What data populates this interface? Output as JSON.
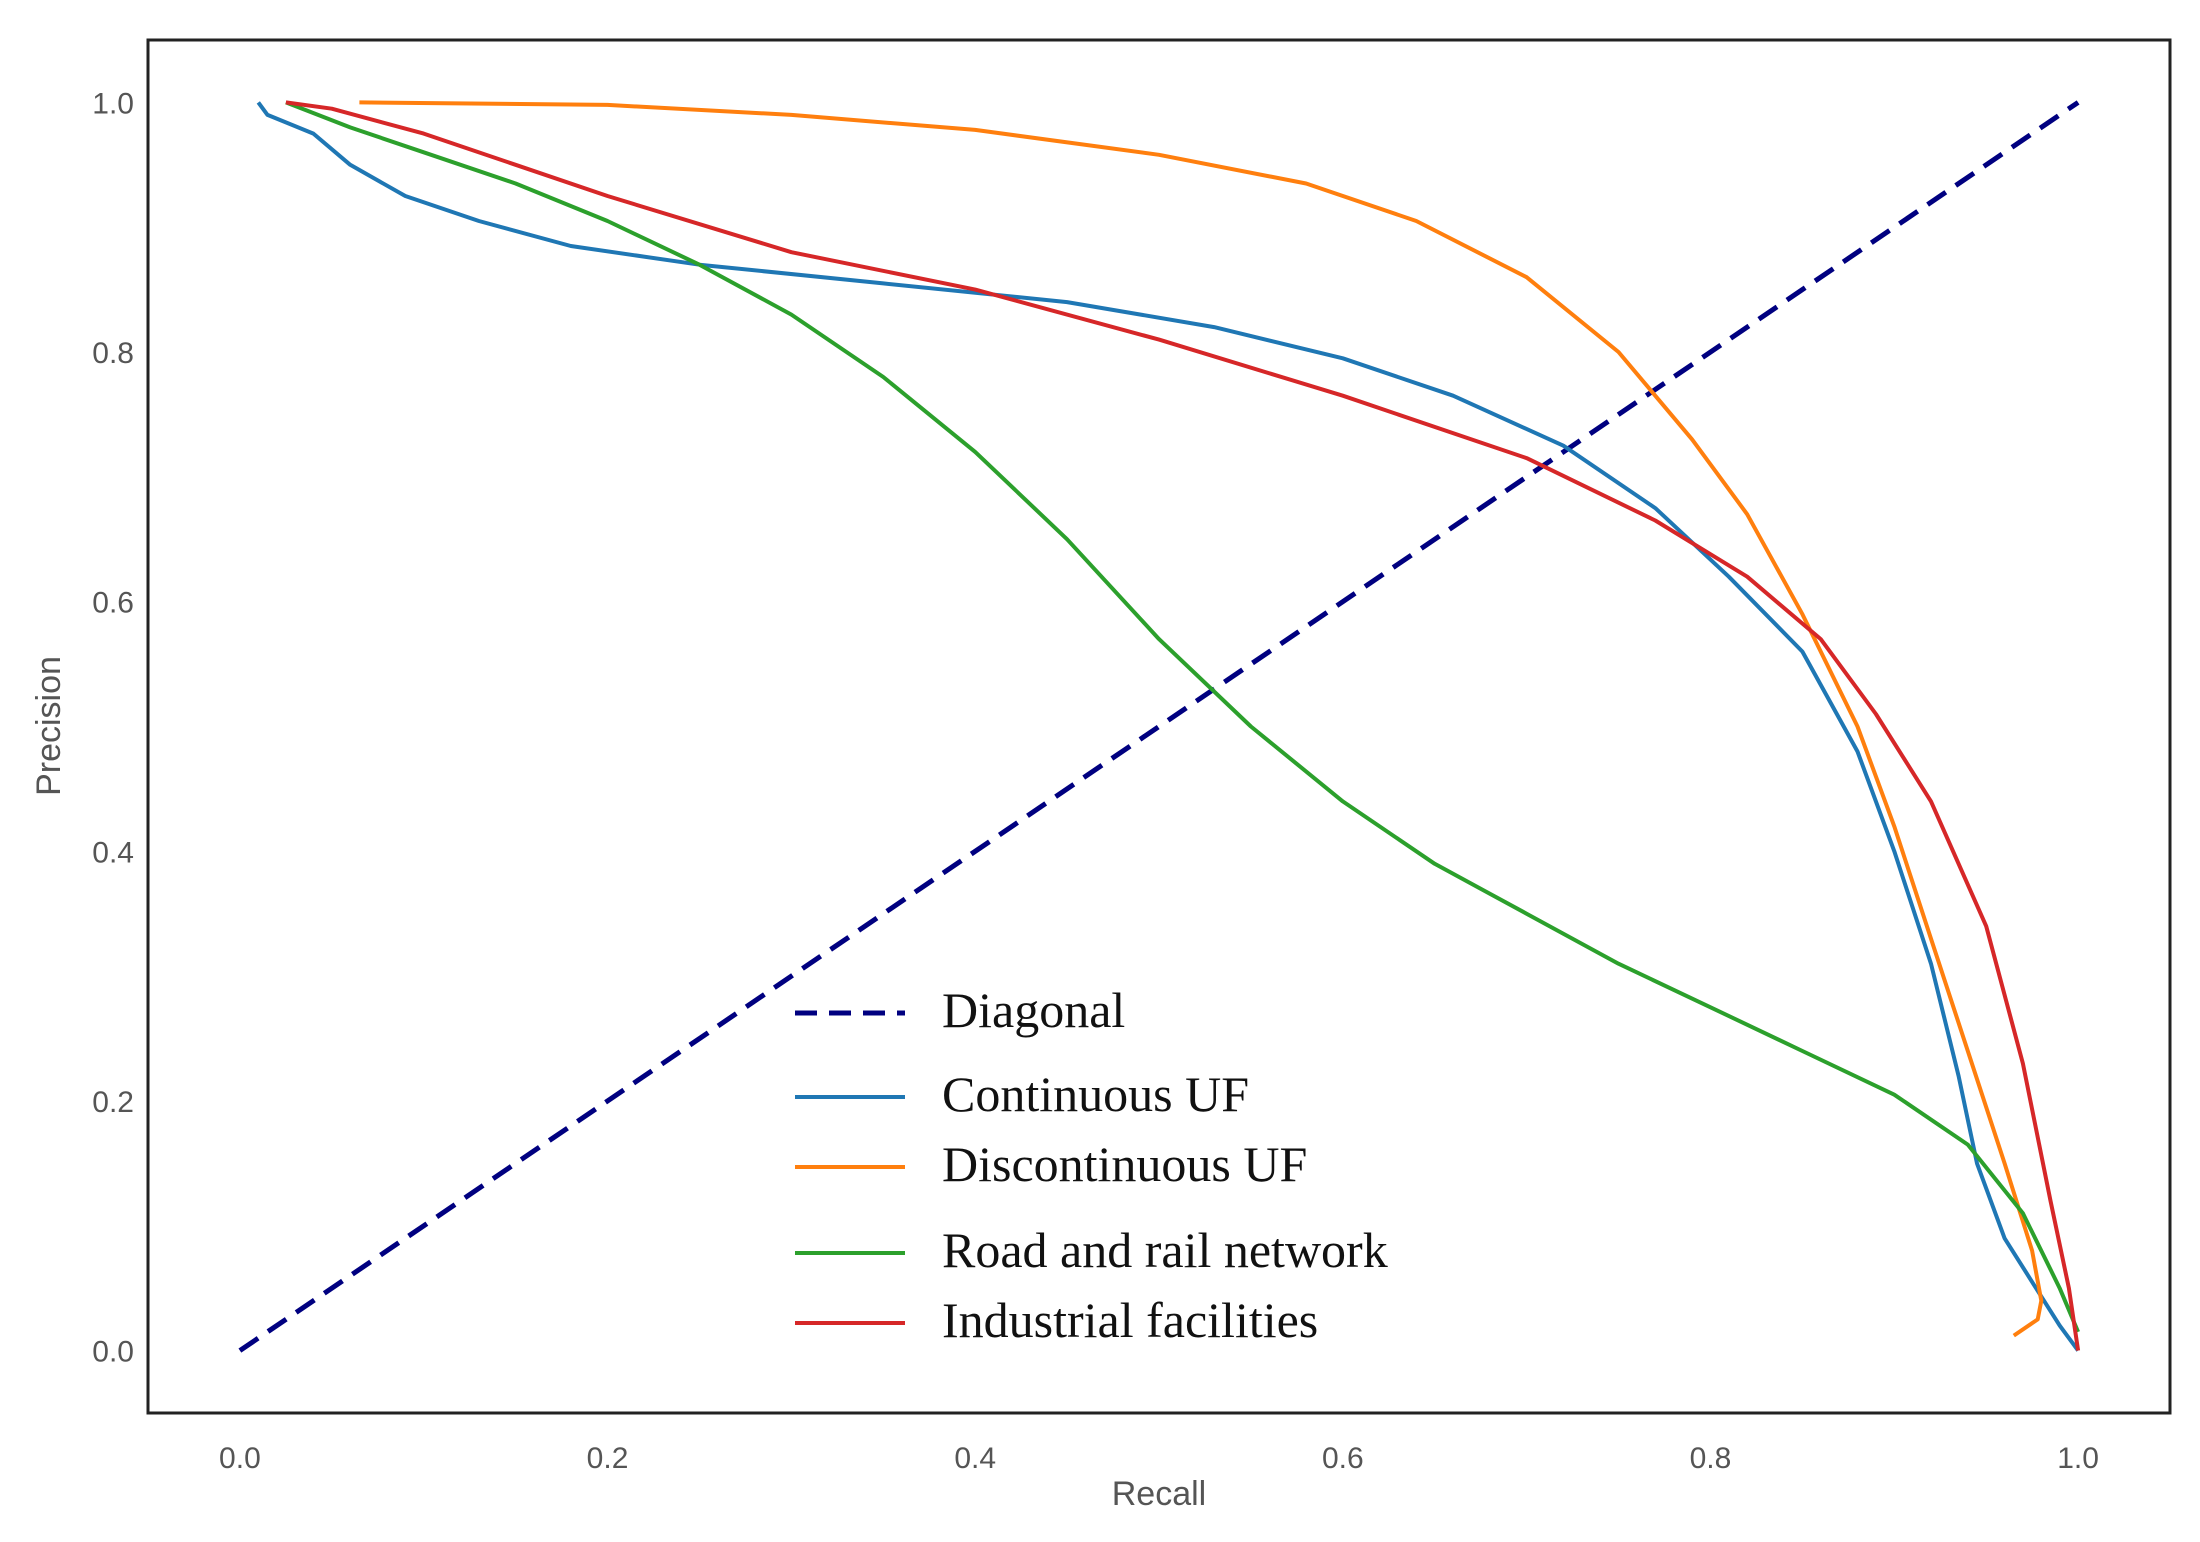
{
  "chart_data": {
    "type": "line",
    "title": "",
    "xlabel": "Recall",
    "ylabel": "Precision",
    "xlim": [
      -0.05,
      1.05
    ],
    "ylim": [
      -0.05,
      1.05
    ],
    "xticks": [
      "0.0",
      "0.2",
      "0.4",
      "0.6",
      "0.8",
      "1.0"
    ],
    "yticks": [
      "0.0",
      "0.2",
      "0.4",
      "0.6",
      "0.8",
      "1.0"
    ],
    "grid": false,
    "legend_position": "lower-center",
    "series": [
      {
        "name": "Diagonal",
        "color": "#000080",
        "dash": true,
        "points": [
          [
            0,
            0
          ],
          [
            1,
            1
          ]
        ]
      },
      {
        "name": "Continuous UF",
        "color": "#1f77b4",
        "dash": false,
        "points": [
          [
            0.01,
            1.0
          ],
          [
            0.015,
            0.99
          ],
          [
            0.04,
            0.975
          ],
          [
            0.06,
            0.95
          ],
          [
            0.09,
            0.925
          ],
          [
            0.13,
            0.905
          ],
          [
            0.18,
            0.885
          ],
          [
            0.25,
            0.87
          ],
          [
            0.35,
            0.855
          ],
          [
            0.45,
            0.84
          ],
          [
            0.53,
            0.82
          ],
          [
            0.6,
            0.795
          ],
          [
            0.66,
            0.765
          ],
          [
            0.72,
            0.725
          ],
          [
            0.77,
            0.675
          ],
          [
            0.81,
            0.62
          ],
          [
            0.85,
            0.56
          ],
          [
            0.88,
            0.48
          ],
          [
            0.9,
            0.4
          ],
          [
            0.92,
            0.31
          ],
          [
            0.935,
            0.22
          ],
          [
            0.945,
            0.15
          ],
          [
            0.96,
            0.09
          ],
          [
            0.975,
            0.055
          ],
          [
            0.99,
            0.02
          ],
          [
            1.0,
            0.0
          ]
        ]
      },
      {
        "name": "Discontinuous UF",
        "color": "#ff7f0e",
        "dash": false,
        "points": [
          [
            0.065,
            1.0
          ],
          [
            0.2,
            0.998
          ],
          [
            0.3,
            0.99
          ],
          [
            0.4,
            0.978
          ],
          [
            0.5,
            0.958
          ],
          [
            0.58,
            0.935
          ],
          [
            0.64,
            0.905
          ],
          [
            0.7,
            0.86
          ],
          [
            0.75,
            0.8
          ],
          [
            0.79,
            0.73
          ],
          [
            0.82,
            0.67
          ],
          [
            0.85,
            0.59
          ],
          [
            0.88,
            0.5
          ],
          [
            0.9,
            0.42
          ],
          [
            0.92,
            0.33
          ],
          [
            0.94,
            0.24
          ],
          [
            0.96,
            0.15
          ],
          [
            0.975,
            0.08
          ],
          [
            0.98,
            0.04
          ],
          [
            0.978,
            0.025
          ],
          [
            0.965,
            0.012
          ]
        ]
      },
      {
        "name": "Road and rail network",
        "color": "#2ca02c",
        "dash": false,
        "points": [
          [
            0.025,
            1.0
          ],
          [
            0.06,
            0.98
          ],
          [
            0.1,
            0.96
          ],
          [
            0.15,
            0.935
          ],
          [
            0.2,
            0.905
          ],
          [
            0.25,
            0.87
          ],
          [
            0.3,
            0.83
          ],
          [
            0.35,
            0.78
          ],
          [
            0.4,
            0.72
          ],
          [
            0.45,
            0.65
          ],
          [
            0.5,
            0.57
          ],
          [
            0.55,
            0.5
          ],
          [
            0.6,
            0.44
          ],
          [
            0.65,
            0.39
          ],
          [
            0.7,
            0.35
          ],
          [
            0.75,
            0.31
          ],
          [
            0.8,
            0.275
          ],
          [
            0.85,
            0.24
          ],
          [
            0.9,
            0.205
          ],
          [
            0.94,
            0.165
          ],
          [
            0.97,
            0.11
          ],
          [
            0.99,
            0.05
          ],
          [
            1.0,
            0.015
          ]
        ]
      },
      {
        "name": "Industrial facilities",
        "color": "#d62728",
        "dash": false,
        "points": [
          [
            0.025,
            1.0
          ],
          [
            0.05,
            0.995
          ],
          [
            0.1,
            0.975
          ],
          [
            0.15,
            0.95
          ],
          [
            0.2,
            0.925
          ],
          [
            0.3,
            0.88
          ],
          [
            0.4,
            0.85
          ],
          [
            0.5,
            0.81
          ],
          [
            0.6,
            0.765
          ],
          [
            0.7,
            0.715
          ],
          [
            0.77,
            0.665
          ],
          [
            0.82,
            0.62
          ],
          [
            0.86,
            0.57
          ],
          [
            0.89,
            0.51
          ],
          [
            0.92,
            0.44
          ],
          [
            0.95,
            0.34
          ],
          [
            0.97,
            0.23
          ],
          [
            0.985,
            0.12
          ],
          [
            0.995,
            0.05
          ],
          [
            1.0,
            0.0
          ]
        ]
      }
    ]
  }
}
